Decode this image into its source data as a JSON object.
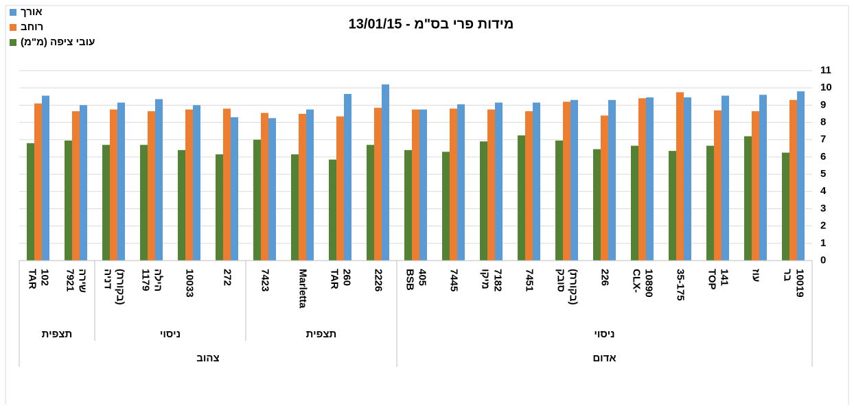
{
  "chart_data": {
    "type": "bar",
    "title": "מידות פרי בס\"מ - 13/01/15",
    "categories": [
      [
        "TAR",
        "102"
      ],
      [
        "7921",
        "שירה"
      ],
      [
        "דניה",
        "(בקורת)"
      ],
      [
        "1179",
        "הילה"
      ],
      [
        "10033"
      ],
      [
        "272"
      ],
      [
        "7423"
      ],
      [
        "Marletta"
      ],
      [
        "TAR",
        "260"
      ],
      [
        "2226"
      ],
      [
        "BSB",
        "405"
      ],
      [
        "7445"
      ],
      [
        "מיקו",
        "7182"
      ],
      [
        "7451"
      ],
      [
        "סובק",
        "(בקורת)"
      ],
      [
        "226"
      ],
      [
        "CLX-",
        "10890"
      ],
      [
        "35-175"
      ],
      [
        "TOP",
        "141"
      ],
      [
        "עוז"
      ],
      [
        "בר",
        "10019"
      ]
    ],
    "groups": [
      {
        "label": "תצפית",
        "span": [
          0,
          1
        ]
      },
      {
        "label": "ניסוי",
        "span": [
          2,
          5
        ]
      },
      {
        "label": "תצפית",
        "span": [
          6,
          9
        ]
      },
      {
        "label": "ניסוי",
        "span": [
          10,
          20
        ]
      }
    ],
    "supergroups": [
      {
        "label": "צהוב",
        "span": [
          0,
          9
        ]
      },
      {
        "label": "אדום",
        "span": [
          10,
          20
        ]
      }
    ],
    "series": [
      {
        "name": "אורך",
        "color": "#5b9bd5",
        "values": [
          9.55,
          9.0,
          9.15,
          9.35,
          9.0,
          8.3,
          8.25,
          8.75,
          9.65,
          10.2,
          8.75,
          9.05,
          9.15,
          9.15,
          9.3,
          9.3,
          9.45,
          9.45,
          9.55,
          9.6,
          9.8
        ]
      },
      {
        "name": "רוחב",
        "color": "#ed7d31",
        "values": [
          9.1,
          8.65,
          8.75,
          8.65,
          8.75,
          8.8,
          8.55,
          8.5,
          8.35,
          8.85,
          8.75,
          8.8,
          8.75,
          8.65,
          9.2,
          8.4,
          9.4,
          9.75,
          8.7,
          8.65,
          9.3
        ]
      },
      {
        "name": "עובי ציפה (מ\"מ)",
        "color": "#548235",
        "values": [
          6.8,
          6.95,
          6.7,
          6.7,
          6.4,
          6.15,
          7.0,
          6.15,
          5.85,
          6.7,
          6.4,
          6.3,
          6.9,
          7.25,
          6.95,
          6.45,
          6.65,
          6.35,
          6.65,
          7.2,
          6.25
        ]
      }
    ],
    "ylim": [
      0,
      11
    ],
    "yticks": [
      0,
      1,
      2,
      3,
      4,
      5,
      6,
      7,
      8,
      9,
      10,
      11
    ],
    "grid": true,
    "legend": "top-left"
  }
}
